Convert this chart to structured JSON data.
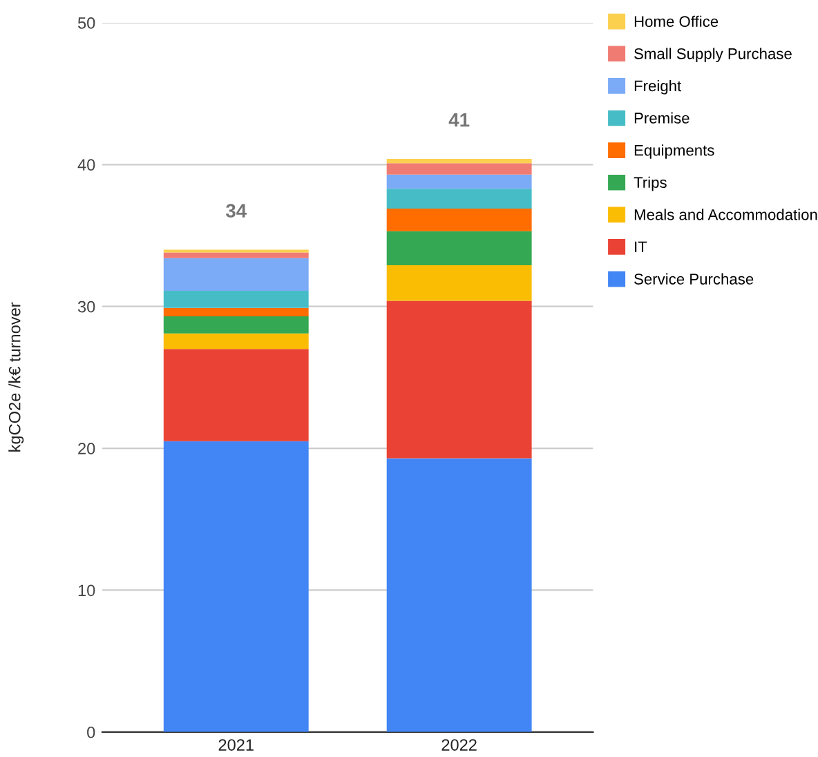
{
  "chart_data": {
    "type": "bar",
    "stacked": true,
    "ylabel": "kgCO2e /k€ turnover",
    "categories": [
      "2021",
      "2022"
    ],
    "series": [
      {
        "name": "Service Purchase",
        "color": "#4285f4",
        "values": [
          20.5,
          19.3
        ]
      },
      {
        "name": "IT",
        "color": "#ea4335",
        "values": [
          6.5,
          11.1
        ]
      },
      {
        "name": "Meals and Accommodation",
        "color": "#fbbc04",
        "values": [
          1.1,
          2.5
        ]
      },
      {
        "name": "Trips",
        "color": "#34a853",
        "values": [
          1.2,
          2.4
        ]
      },
      {
        "name": "Equipments",
        "color": "#ff6d01",
        "values": [
          0.6,
          1.6
        ]
      },
      {
        "name": "Premise",
        "color": "#46bdc6",
        "values": [
          1.2,
          1.4
        ]
      },
      {
        "name": "Freight",
        "color": "#7baaf7",
        "values": [
          2.3,
          1.0
        ]
      },
      {
        "name": "Small Supply Purchase",
        "color": "#f07b72",
        "values": [
          0.4,
          0.8
        ]
      },
      {
        "name": "Home Office",
        "color": "#fcd04f",
        "values": [
          0.2,
          0.3
        ]
      }
    ],
    "totals": [
      "34",
      "41"
    ],
    "ylim": [
      0,
      50
    ],
    "yticks": [
      0,
      10,
      20,
      30,
      40,
      50
    ],
    "grid": "y",
    "legend": "right"
  }
}
